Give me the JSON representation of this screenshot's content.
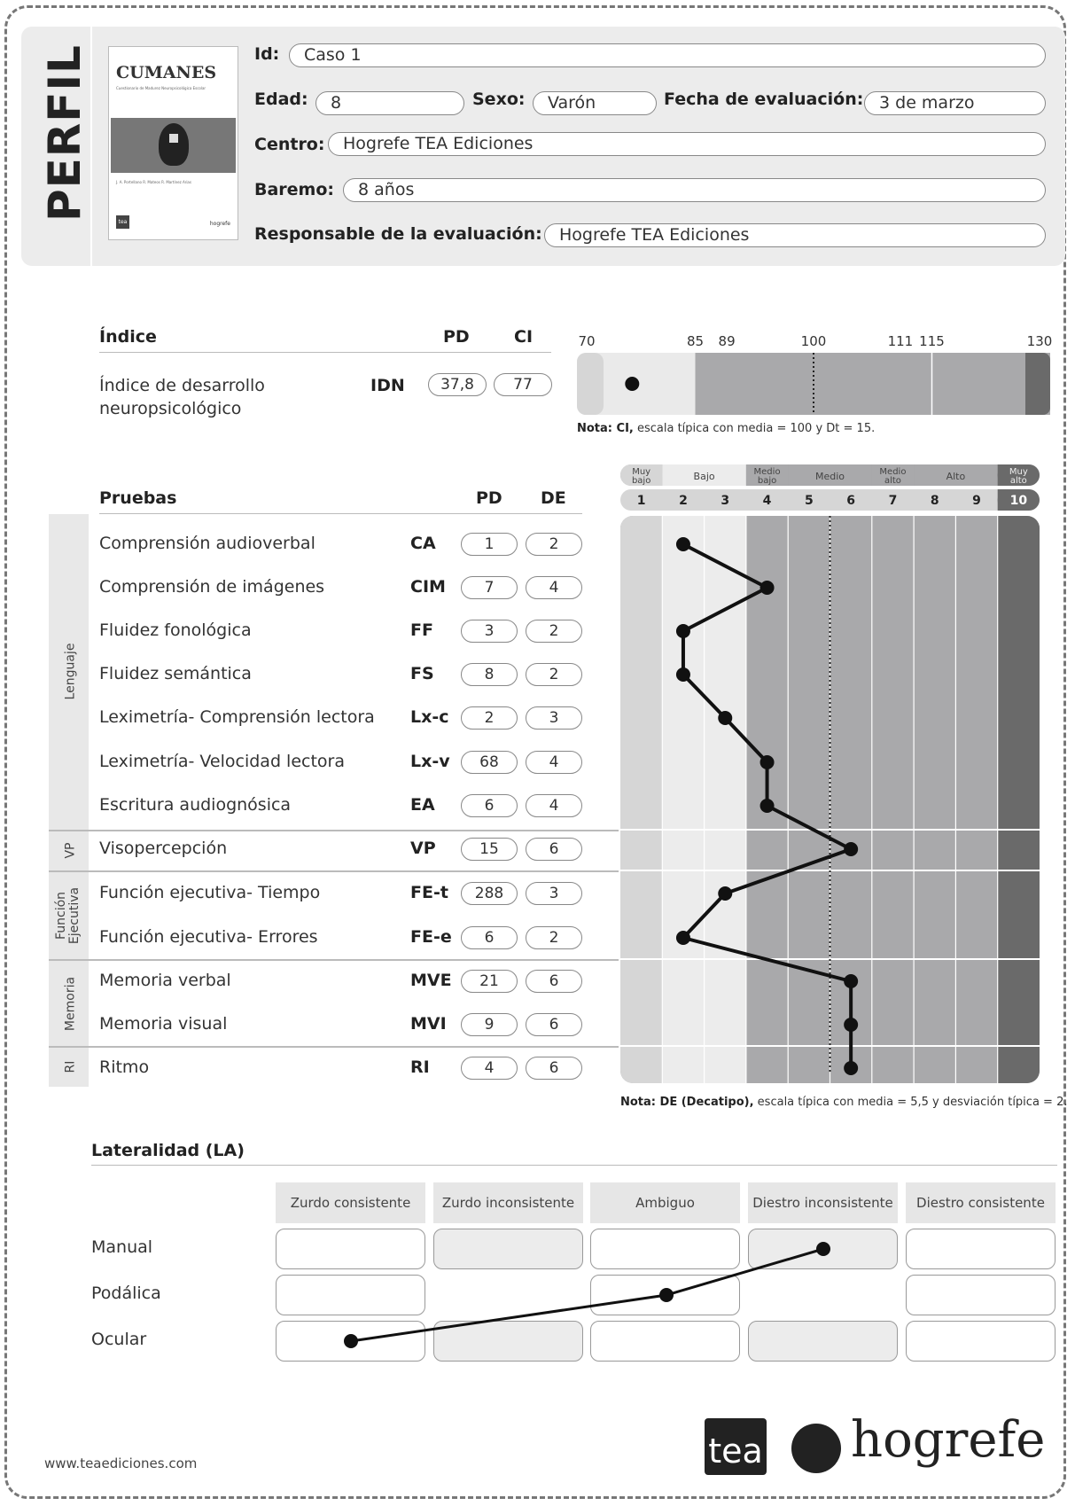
{
  "header": {
    "title": "PERFIL",
    "cover_title": "CUMANES",
    "cover_subtitle": "Cuestionario de Madurez Neuropsicológica Escolar",
    "cover_authors": "J. A. Portellano  R. Mateos  R. Martínez Arias",
    "cover_logo_left": "tea",
    "cover_logo_right": "hogrefe",
    "id_label": "Id:",
    "id_value": "Caso 1",
    "edad_label": "Edad:",
    "edad_value": "8",
    "sexo_label": "Sexo:",
    "sexo_value": "Varón",
    "fecha_label": "Fecha de evaluación:",
    "fecha_value": "3 de marzo",
    "centro_label": "Centro:",
    "centro_value": "Hogrefe TEA Ediciones",
    "baremo_label": "Baremo:",
    "baremo_value": "8 años",
    "responsable_label": "Responsable de la evaluación:",
    "responsable_value": "Hogrefe TEA Ediciones"
  },
  "index": {
    "title": "Índice",
    "pd_header": "PD",
    "ci_header": "CI",
    "name_line1": "Índice de desarrollo",
    "name_line2": "neuropsicológico",
    "abbr": "IDN",
    "pd": "37,8",
    "ci": "77",
    "scale_ticks": [
      "70",
      "85",
      "89",
      "100",
      "111",
      "115",
      "130"
    ],
    "note_bold": "Nota: CI,",
    "note_rest": " escala típica con media = 100 y Dt = 15."
  },
  "tests": {
    "title": "Pruebas",
    "pd_header": "PD",
    "de_header": "DE",
    "groups": [
      "Lenguaje",
      "VP",
      "Función Ejecutiva",
      "Memoria",
      "RI"
    ],
    "group_func_line1": "Función",
    "group_func_line2": "Ejecutiva",
    "band_labels": {
      "muy_bajo_1": "Muy",
      "muy_bajo_2": "bajo",
      "bajo": "Bajo",
      "medio_bajo_1": "Medio",
      "medio_bajo_2": "bajo",
      "medio": "Medio",
      "medio_alto_1": "Medio",
      "medio_alto_2": "alto",
      "alto": "Alto",
      "muy_alto_1": "Muy",
      "muy_alto_2": "alto"
    },
    "decatipos": [
      "1",
      "2",
      "3",
      "4",
      "5",
      "6",
      "7",
      "8",
      "9",
      "10"
    ],
    "rows": [
      {
        "name": "Comprensión audioverbal",
        "abbr": "CA",
        "pd": "1",
        "de": "2"
      },
      {
        "name": "Comprensión de imágenes",
        "abbr": "CIM",
        "pd": "7",
        "de": "4"
      },
      {
        "name": "Fluidez fonológica",
        "abbr": "FF",
        "pd": "3",
        "de": "2"
      },
      {
        "name": "Fluidez semántica",
        "abbr": "FS",
        "pd": "8",
        "de": "2"
      },
      {
        "name": "Leximetría- Comprensión lectora",
        "abbr": "Lx-c",
        "pd": "2",
        "de": "3"
      },
      {
        "name": "Leximetría- Velocidad lectora",
        "abbr": "Lx-v",
        "pd": "68",
        "de": "4"
      },
      {
        "name": "Escritura audiognósica",
        "abbr": "EA",
        "pd": "6",
        "de": "4"
      },
      {
        "name": "Visopercepción",
        "abbr": "VP",
        "pd": "15",
        "de": "6"
      },
      {
        "name": "Función ejecutiva- Tiempo",
        "abbr": "FE-t",
        "pd": "288",
        "de": "3"
      },
      {
        "name": "Función ejecutiva- Errores",
        "abbr": "FE-e",
        "pd": "6",
        "de": "2"
      },
      {
        "name": "Memoria verbal",
        "abbr": "MVE",
        "pd": "21",
        "de": "6"
      },
      {
        "name": "Memoria visual",
        "abbr": "MVI",
        "pd": "9",
        "de": "6"
      },
      {
        "name": "Ritmo",
        "abbr": "RI",
        "pd": "4",
        "de": "6"
      }
    ],
    "note_bold": "Nota: DE (Decatipo),",
    "note_rest": " escala típica con media = 5,5 y desviación típica = 2."
  },
  "laterality": {
    "title": "Lateralidad (LA)",
    "columns": [
      "Zurdo consistente",
      "Zurdo inconsistente",
      "Ambiguo",
      "Diestro inconsistente",
      "Diestro consistente"
    ],
    "rows": [
      "Manual",
      "Podálica",
      "Ocular"
    ]
  },
  "footer": {
    "url": "www.teaediciones.com",
    "logo_tea": "tea",
    "logo_hogrefe": "hogrefe"
  },
  "chart_data": [
    {
      "type": "scatter",
      "title": "",
      "xlabel": "CI",
      "xlim": [
        70,
        130
      ],
      "ticks": [
        70,
        85,
        89,
        100,
        111,
        115,
        130
      ],
      "series": [
        {
          "name": "IDN",
          "x": [
            77
          ]
        }
      ]
    },
    {
      "type": "line",
      "title": "",
      "xlabel": "DE",
      "xlim": [
        1,
        10
      ],
      "mean": 5.5,
      "categories": [
        "CA",
        "CIM",
        "FF",
        "FS",
        "Lx-c",
        "Lx-v",
        "EA",
        "VP",
        "FE-t",
        "FE-e",
        "MVE",
        "MVI",
        "RI"
      ],
      "values": [
        2,
        4,
        2,
        2,
        3,
        4,
        4,
        6,
        3,
        2,
        6,
        6,
        6
      ]
    },
    {
      "type": "line",
      "title": "",
      "categories": [
        "Manual",
        "Podálica",
        "Ocular"
      ],
      "values": [
        "Diestro inconsistente",
        "Ambiguo",
        "Zurdo consistente"
      ]
    }
  ]
}
